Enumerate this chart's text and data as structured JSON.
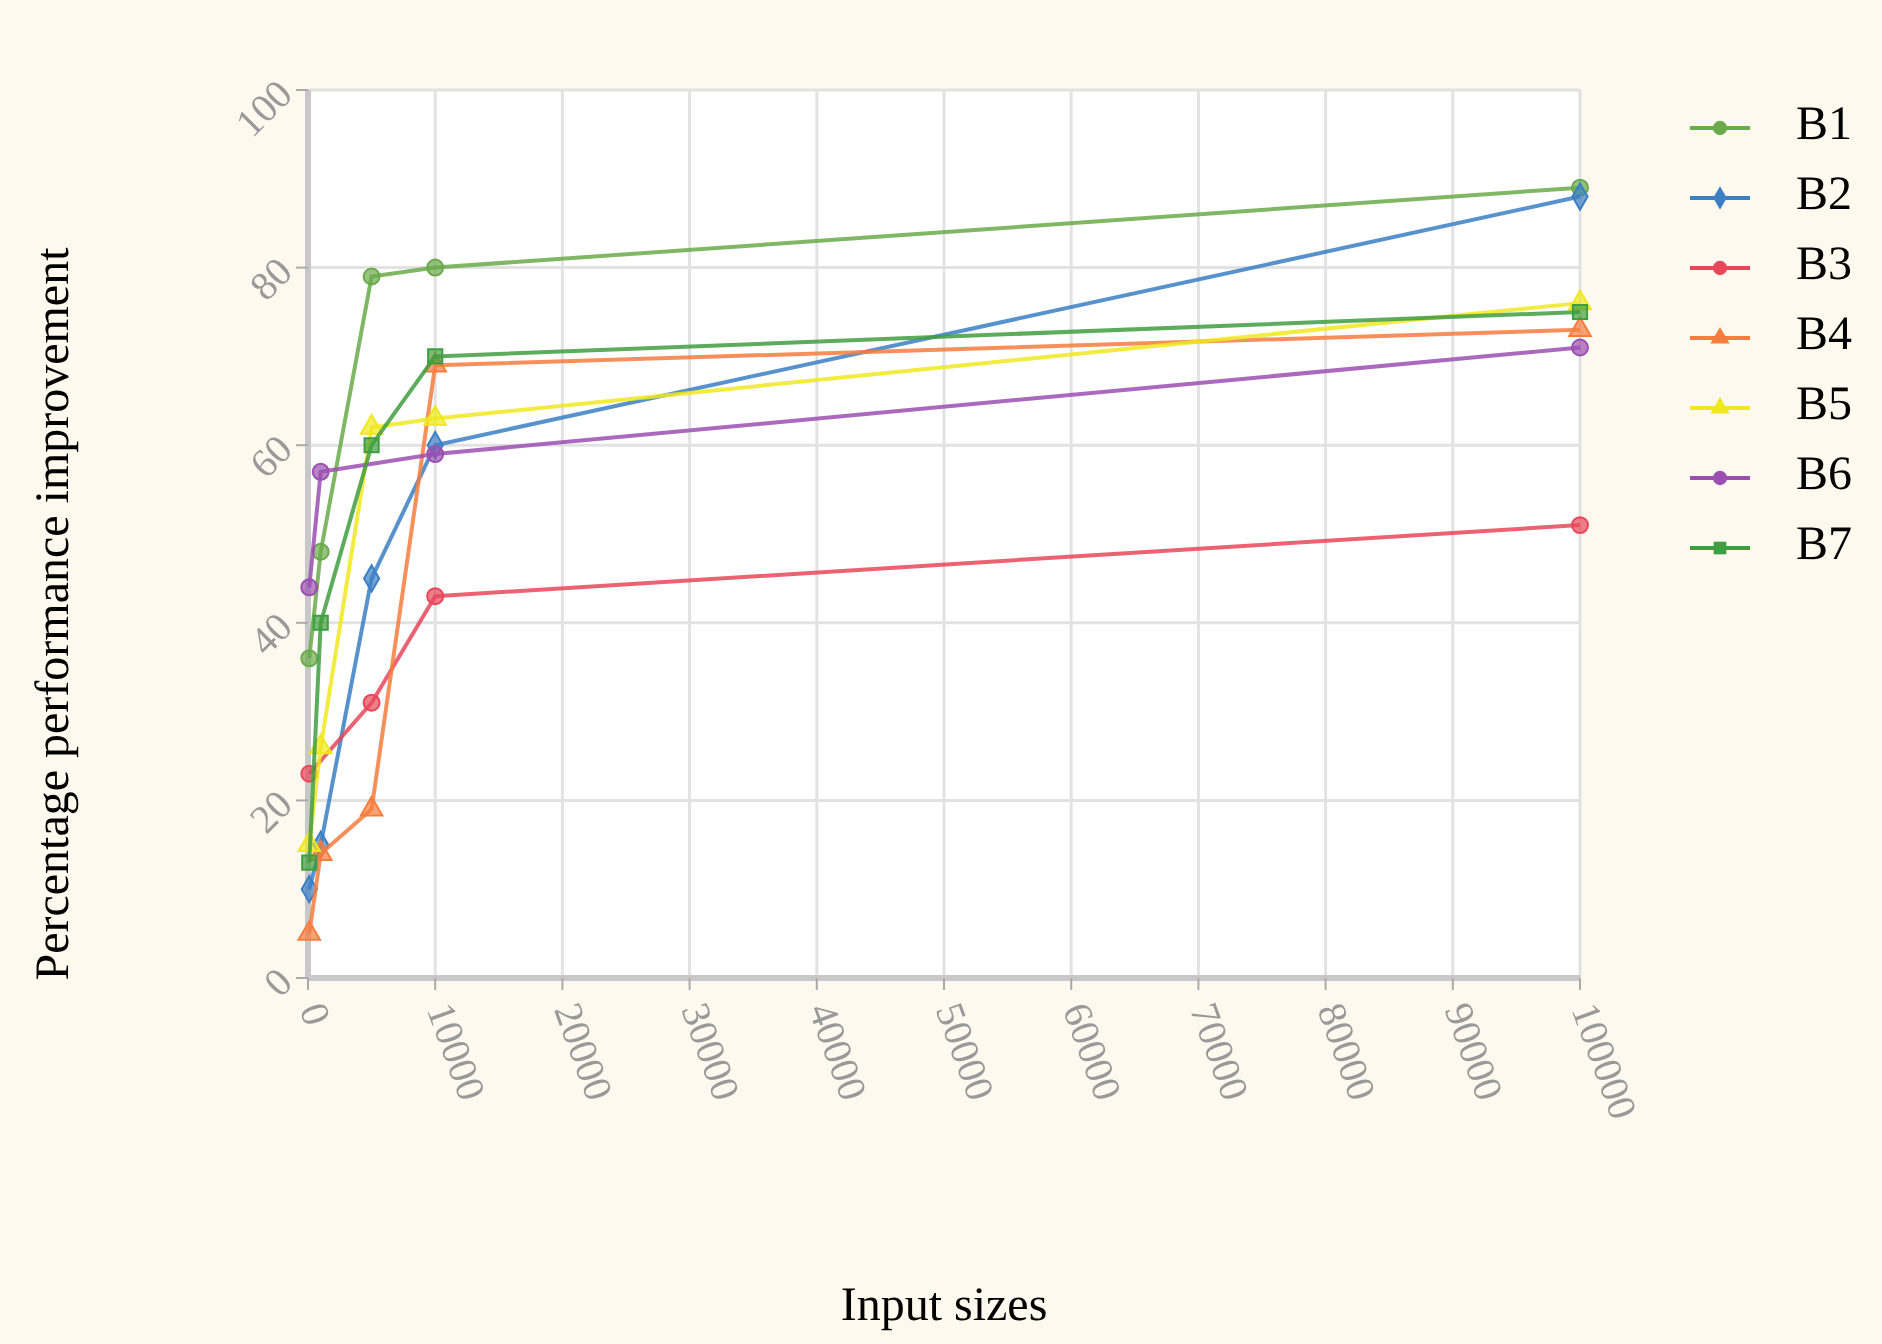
{
  "chart_data": {
    "type": "line",
    "xlabel": "Input sizes",
    "ylabel": "Percentage performance improvement",
    "xlim": [
      0,
      100000
    ],
    "xticks": [
      0,
      10000,
      20000,
      30000,
      40000,
      50000,
      60000,
      70000,
      80000,
      90000,
      100000
    ],
    "ylim": [
      0,
      100
    ],
    "yticks": [
      0,
      20,
      40,
      60,
      80,
      100
    ],
    "grid": true,
    "legend": "right",
    "series": [
      {
        "name": "B1",
        "color": "#6aaa4a",
        "marker": "circle",
        "x": [
          100,
          1000,
          5000,
          10000,
          100000
        ],
        "values": [
          36,
          48,
          79,
          80,
          89
        ]
      },
      {
        "name": "B2",
        "color": "#3b7fc4",
        "marker": "diamond",
        "x": [
          100,
          1000,
          5000,
          10000,
          100000
        ],
        "values": [
          10,
          15,
          45,
          60,
          88
        ]
      },
      {
        "name": "B3",
        "color": "#e8475a",
        "marker": "circle",
        "x": [
          100,
          5000,
          10000,
          100000
        ],
        "values": [
          23,
          31,
          43,
          51
        ]
      },
      {
        "name": "B4",
        "color": "#f57d3e",
        "marker": "triangle",
        "x": [
          100,
          1000,
          5000,
          10000,
          100000
        ],
        "values": [
          5,
          14,
          19,
          69,
          73
        ]
      },
      {
        "name": "B5",
        "color": "#f0e81e",
        "marker": "triangle",
        "x": [
          100,
          1000,
          5000,
          10000,
          100000
        ],
        "values": [
          15,
          26,
          62,
          63,
          76
        ]
      },
      {
        "name": "B6",
        "color": "#9b4fb0",
        "marker": "circle",
        "x": [
          100,
          1000,
          10000,
          100000
        ],
        "values": [
          44,
          57,
          59,
          71
        ]
      },
      {
        "name": "B7",
        "color": "#3f9e3f",
        "marker": "square",
        "x": [
          100,
          1000,
          5000,
          10000,
          100000
        ],
        "values": [
          13,
          40,
          60,
          70,
          75
        ]
      }
    ]
  }
}
